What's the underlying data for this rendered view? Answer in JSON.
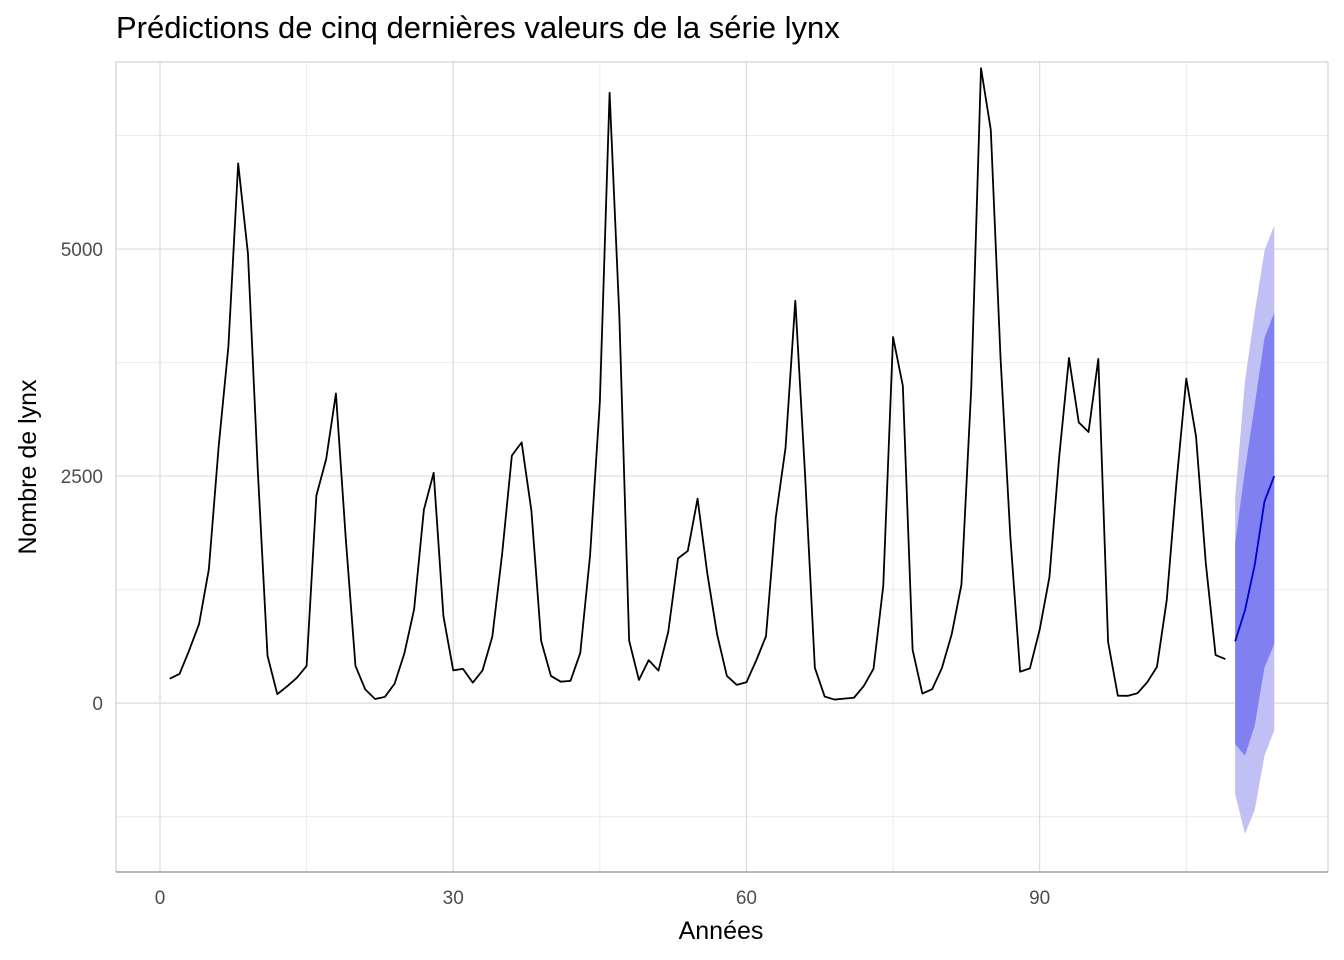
{
  "chart_data": {
    "type": "line",
    "title": "Prédictions de cinq dernières valeurs de la série lynx",
    "xlabel": "Années",
    "ylabel": "Nombre de lynx",
    "xlim": [
      -4.5,
      119.5
    ],
    "ylim": [
      -1860,
      7060
    ],
    "x_ticks": [
      0,
      30,
      60,
      90
    ],
    "y_ticks": [
      0,
      2500,
      5000
    ],
    "x_tick_labels": [
      "0",
      "30",
      "60",
      "90"
    ],
    "y_tick_labels": [
      "0",
      "2500",
      "5000"
    ],
    "grid": true,
    "legend": "none",
    "series": [
      {
        "role": "observed",
        "color": "#000000",
        "x": [
          1,
          2,
          3,
          4,
          5,
          6,
          7,
          8,
          9,
          10,
          11,
          12,
          13,
          14,
          15,
          16,
          17,
          18,
          19,
          20,
          21,
          22,
          23,
          24,
          25,
          26,
          27,
          28,
          29,
          30,
          31,
          32,
          33,
          34,
          35,
          36,
          37,
          38,
          39,
          40,
          41,
          42,
          43,
          44,
          45,
          46,
          47,
          48,
          49,
          50,
          51,
          52,
          53,
          54,
          55,
          56,
          57,
          58,
          59,
          60,
          61,
          62,
          63,
          64,
          65,
          66,
          67,
          68,
          69,
          70,
          71,
          72,
          73,
          74,
          75,
          76,
          77,
          78,
          79,
          80,
          81,
          82,
          83,
          84,
          85,
          86,
          87,
          88,
          89,
          90,
          91,
          92,
          93,
          94,
          95,
          96,
          97,
          98,
          99,
          100,
          101,
          102,
          103,
          104,
          105,
          106,
          107,
          108,
          109
        ],
        "values": [
          269,
          321,
          585,
          871,
          1475,
          2821,
          3928,
          5943,
          4950,
          2577,
          523,
          98,
          184,
          279,
          409,
          2285,
          2685,
          3409,
          1824,
          409,
          151,
          45,
          68,
          213,
          546,
          1033,
          2129,
          2536,
          957,
          361,
          377,
          225,
          360,
          731,
          1638,
          2725,
          2871,
          2119,
          684,
          299,
          236,
          245,
          552,
          1623,
          3311,
          6721,
          4254,
          687,
          255,
          473,
          358,
          784,
          1594,
          1676,
          2251,
          1426,
          756,
          299,
          201,
          229,
          469,
          736,
          2042,
          2811,
          4431,
          2511,
          389,
          73,
          39,
          49,
          59,
          188,
          377,
          1292,
          4031,
          3495,
          587,
          105,
          153,
          387,
          758,
          1307,
          3465,
          6991,
          6313,
          3794,
          1836,
          345,
          382,
          808,
          1388,
          2713,
          3800,
          3091,
          2985,
          3790,
          674,
          81,
          80,
          108,
          229,
          399,
          1132,
          2432,
          3574,
          2935,
          1537,
          529,
          485
        ]
      },
      {
        "role": "forecast",
        "color": "#0000cd",
        "x": [
          110,
          111,
          112,
          113,
          114
        ],
        "values": [
          680,
          1020,
          1520,
          2220,
          2500
        ]
      }
    ],
    "intervals": [
      {
        "level": "80%",
        "color": "#8080f0",
        "x": [
          110,
          111,
          112,
          113,
          114
        ],
        "lower": [
          -450,
          -580,
          -250,
          390,
          650
        ],
        "upper": [
          1760,
          2560,
          3280,
          4020,
          4300
        ]
      },
      {
        "level": "95%",
        "color": "#c0c0f5",
        "x": [
          110,
          111,
          112,
          113,
          114
        ],
        "lower": [
          -1000,
          -1440,
          -1180,
          -580,
          -300
        ],
        "upper": [
          2260,
          3540,
          4300,
          4980,
          5260
        ]
      }
    ]
  }
}
